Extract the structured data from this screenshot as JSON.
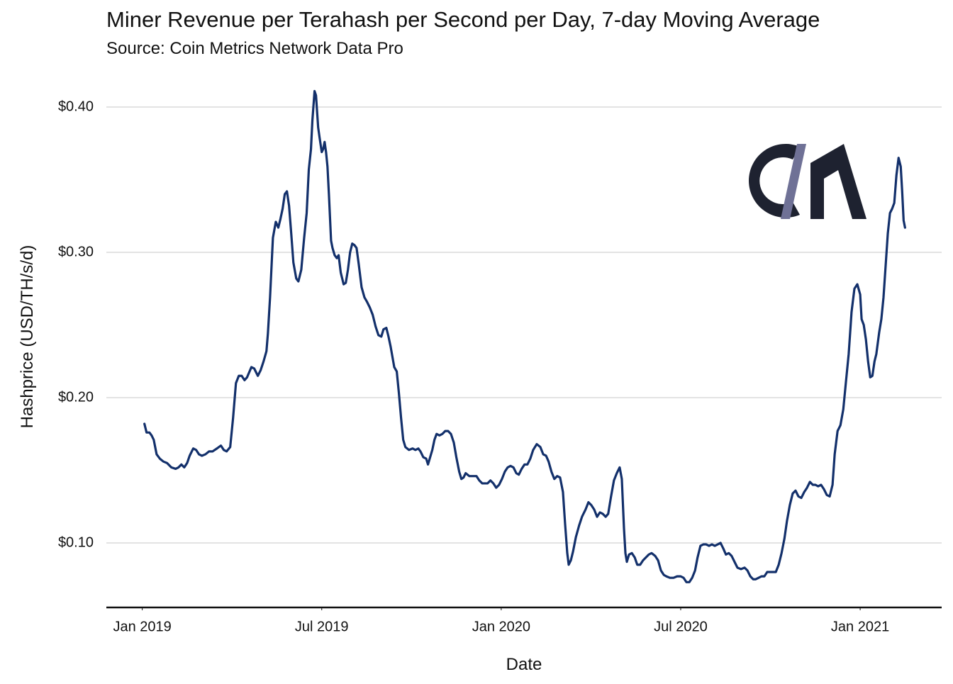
{
  "chart_data": {
    "type": "line",
    "title": "Miner Revenue per Terahash per Second per Day, 7-day Moving Average",
    "subtitle": "Source: Coin Metrics Network Data Pro",
    "x_label": "Date",
    "y_label": "Hashprice (USD/TH/s/d)",
    "xlim": [
      2018.9,
      2021.227
    ],
    "ylim": [
      0.0556,
      0.42
    ],
    "xticks": [
      {
        "value": 2019,
        "label": "Jan 2019"
      },
      {
        "value": 2019.5,
        "label": "Jul 2019"
      },
      {
        "value": 2020,
        "label": "Jan 2020"
      },
      {
        "value": 2020.5,
        "label": "Jul 2020"
      },
      {
        "value": 2021,
        "label": "Jan 2021"
      }
    ],
    "yticks": [
      {
        "value": 0.1,
        "label": "$0.10"
      },
      {
        "value": 0.2,
        "label": "$0.20"
      },
      {
        "value": 0.3,
        "label": "$0.30"
      },
      {
        "value": 0.4,
        "label": "$0.40"
      }
    ],
    "grid": true,
    "color": "#13306b",
    "x": [
      2019.006,
      2019.012,
      2019.02,
      2019.026,
      2019.032,
      2019.04,
      2019.049,
      2019.059,
      2019.069,
      2019.081,
      2019.093,
      2019.101,
      2019.109,
      2019.117,
      2019.125,
      2019.132,
      2019.142,
      2019.15,
      2019.158,
      2019.166,
      2019.176,
      2019.186,
      2019.196,
      2019.208,
      2019.219,
      2019.227,
      2019.235,
      2019.245,
      2019.253,
      2019.261,
      2019.269,
      2019.277,
      2019.285,
      2019.292,
      2019.304,
      2019.312,
      2019.322,
      2019.33,
      2019.338,
      2019.346,
      2019.35,
      2019.356,
      2019.364,
      2019.372,
      2019.379,
      2019.385,
      2019.391,
      2019.397,
      2019.403,
      2019.409,
      2019.415,
      2019.421,
      2019.429,
      2019.435,
      2019.443,
      2019.451,
      2019.458,
      2019.464,
      2019.47,
      2019.474,
      2019.48,
      2019.484,
      2019.49,
      2019.494,
      2019.5,
      2019.504,
      2019.508,
      2019.512,
      2019.516,
      2019.52,
      2019.526,
      2019.53,
      2019.536,
      2019.542,
      2019.547,
      2019.553,
      2019.561,
      2019.567,
      2019.573,
      2019.579,
      2019.585,
      2019.591,
      2019.597,
      2019.603,
      2019.611,
      2019.619,
      2019.626,
      2019.634,
      2019.642,
      2019.65,
      2019.658,
      2019.666,
      2019.672,
      2019.68,
      2019.686,
      2019.692,
      2019.702,
      2019.709,
      2019.715,
      2019.721,
      2019.727,
      2019.733,
      2019.743,
      2019.753,
      2019.761,
      2019.769,
      2019.775,
      2019.783,
      2019.791,
      2019.796,
      2019.802,
      2019.808,
      2019.814,
      2019.82,
      2019.828,
      2019.836,
      2019.844,
      2019.852,
      2019.86,
      2019.868,
      2019.875,
      2019.883,
      2019.889,
      2019.895,
      2019.901,
      2019.911,
      2019.921,
      2019.931,
      2019.939,
      2019.947,
      2019.955,
      2019.962,
      2019.97,
      2019.978,
      2019.986,
      2019.994,
      2020.002,
      2020.01,
      2020.018,
      2020.026,
      2020.034,
      2020.042,
      2020.049,
      2020.057,
      2020.065,
      2020.073,
      2020.081,
      2020.089,
      2020.099,
      2020.109,
      2020.117,
      2020.125,
      2020.132,
      2020.14,
      2020.148,
      2020.156,
      2020.164,
      2020.172,
      2020.178,
      2020.184,
      2020.188,
      2020.194,
      2020.2,
      2020.208,
      2020.217,
      2020.225,
      2020.235,
      2020.243,
      2020.251,
      2020.259,
      2020.267,
      2020.275,
      2020.283,
      2020.291,
      2020.298,
      2020.306,
      2020.314,
      2020.322,
      2020.33,
      2020.336,
      2020.342,
      2020.346,
      2020.35,
      2020.356,
      2020.364,
      2020.372,
      2020.379,
      2020.387,
      2020.395,
      2020.403,
      2020.411,
      2020.419,
      2020.429,
      2020.437,
      2020.445,
      2020.453,
      2020.46,
      2020.47,
      2020.48,
      2020.49,
      2020.5,
      2020.508,
      2020.516,
      2020.524,
      2020.532,
      2020.54,
      2020.547,
      2020.555,
      2020.563,
      2020.571,
      2020.579,
      2020.587,
      2020.595,
      2020.603,
      2020.611,
      2020.619,
      2020.626,
      2020.634,
      2020.642,
      2020.65,
      2020.658,
      2020.668,
      2020.678,
      2020.686,
      2020.694,
      2020.702,
      2020.709,
      2020.717,
      2020.725,
      2020.733,
      2020.741,
      2020.749,
      2020.757,
      2020.765,
      2020.773,
      2020.781,
      2020.789,
      2020.796,
      2020.804,
      2020.812,
      2020.82,
      2020.828,
      2020.836,
      2020.844,
      2020.852,
      2020.86,
      2020.868,
      2020.875,
      2020.883,
      2020.891,
      2020.899,
      2020.907,
      2020.915,
      2020.923,
      2020.929,
      2020.937,
      2020.945,
      2020.953,
      2020.96,
      2020.968,
      2020.976,
      2020.984,
      2020.992,
      2021.0,
      2021.004,
      2021.01,
      2021.016,
      2021.022,
      2021.028,
      2021.034,
      2021.04,
      2021.045,
      2021.053,
      2021.059,
      2021.065,
      2021.071,
      2021.077,
      2021.083,
      2021.089,
      2021.095,
      2021.101,
      2021.107,
      2021.113,
      2021.117,
      2021.121,
      2021.125
    ],
    "values": [
      0.182,
      0.176,
      0.176,
      0.174,
      0.171,
      0.161,
      0.158,
      0.156,
      0.155,
      0.152,
      0.151,
      0.152,
      0.154,
      0.152,
      0.155,
      0.16,
      0.165,
      0.164,
      0.161,
      0.16,
      0.161,
      0.163,
      0.163,
      0.165,
      0.167,
      0.164,
      0.163,
      0.166,
      0.186,
      0.21,
      0.215,
      0.215,
      0.212,
      0.214,
      0.221,
      0.22,
      0.215,
      0.219,
      0.225,
      0.232,
      0.244,
      0.269,
      0.31,
      0.321,
      0.317,
      0.323,
      0.33,
      0.34,
      0.342,
      0.332,
      0.313,
      0.293,
      0.282,
      0.28,
      0.288,
      0.31,
      0.327,
      0.357,
      0.371,
      0.391,
      0.411,
      0.408,
      0.386,
      0.379,
      0.369,
      0.371,
      0.376,
      0.369,
      0.359,
      0.34,
      0.308,
      0.303,
      0.298,
      0.296,
      0.298,
      0.286,
      0.278,
      0.279,
      0.288,
      0.3,
      0.306,
      0.305,
      0.303,
      0.292,
      0.276,
      0.269,
      0.266,
      0.262,
      0.257,
      0.249,
      0.243,
      0.242,
      0.247,
      0.248,
      0.242,
      0.235,
      0.221,
      0.218,
      0.203,
      0.186,
      0.171,
      0.166,
      0.164,
      0.165,
      0.164,
      0.165,
      0.163,
      0.159,
      0.158,
      0.154,
      0.159,
      0.164,
      0.171,
      0.175,
      0.174,
      0.175,
      0.177,
      0.177,
      0.175,
      0.169,
      0.159,
      0.149,
      0.144,
      0.145,
      0.148,
      0.146,
      0.146,
      0.146,
      0.143,
      0.141,
      0.141,
      0.141,
      0.143,
      0.141,
      0.138,
      0.14,
      0.144,
      0.149,
      0.152,
      0.153,
      0.152,
      0.148,
      0.147,
      0.151,
      0.154,
      0.154,
      0.158,
      0.164,
      0.168,
      0.166,
      0.161,
      0.16,
      0.156,
      0.149,
      0.144,
      0.146,
      0.145,
      0.135,
      0.113,
      0.093,
      0.085,
      0.088,
      0.094,
      0.104,
      0.112,
      0.118,
      0.123,
      0.128,
      0.126,
      0.123,
      0.118,
      0.121,
      0.12,
      0.118,
      0.12,
      0.132,
      0.143,
      0.148,
      0.152,
      0.144,
      0.11,
      0.093,
      0.087,
      0.092,
      0.093,
      0.09,
      0.085,
      0.085,
      0.088,
      0.09,
      0.092,
      0.093,
      0.091,
      0.088,
      0.081,
      0.078,
      0.077,
      0.076,
      0.076,
      0.077,
      0.077,
      0.076,
      0.073,
      0.073,
      0.076,
      0.081,
      0.09,
      0.098,
      0.099,
      0.099,
      0.098,
      0.099,
      0.098,
      0.099,
      0.1,
      0.096,
      0.092,
      0.093,
      0.091,
      0.087,
      0.083,
      0.082,
      0.083,
      0.081,
      0.077,
      0.075,
      0.075,
      0.076,
      0.077,
      0.077,
      0.08,
      0.08,
      0.08,
      0.08,
      0.085,
      0.093,
      0.103,
      0.115,
      0.126,
      0.134,
      0.136,
      0.132,
      0.131,
      0.135,
      0.138,
      0.142,
      0.14,
      0.14,
      0.139,
      0.14,
      0.137,
      0.133,
      0.132,
      0.14,
      0.161,
      0.177,
      0.181,
      0.192,
      0.21,
      0.23,
      0.259,
      0.275,
      0.278,
      0.271,
      0.254,
      0.25,
      0.24,
      0.225,
      0.214,
      0.215,
      0.225,
      0.23,
      0.245,
      0.254,
      0.269,
      0.291,
      0.313,
      0.327,
      0.33,
      0.334,
      0.353,
      0.365,
      0.359,
      0.342,
      0.322,
      0.317
    ]
  }
}
